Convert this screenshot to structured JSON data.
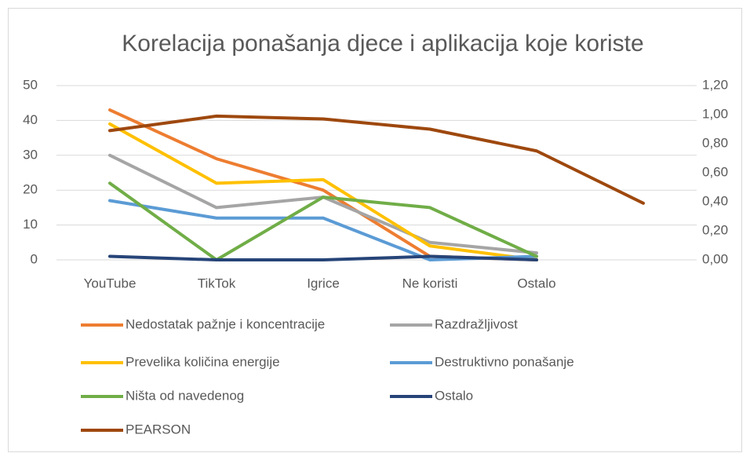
{
  "chart_data": {
    "type": "line",
    "title": "Korelacija ponašanja djece i aplikacija koje koriste",
    "categories": [
      "YouTube",
      "TikTok",
      "Igrice",
      "Ne koristi",
      "Ostalo",
      null
    ],
    "series": [
      {
        "name": "Nedostatak pažnje i koncentracije",
        "color": "#ed7d31",
        "values": [
          43,
          29,
          20,
          1,
          0,
          null
        ]
      },
      {
        "name": "Razdražljivost",
        "color": "#a5a5a5",
        "values": [
          30,
          15,
          18,
          5,
          2,
          null
        ]
      },
      {
        "name": "Prevelika količina energije",
        "color": "#ffc000",
        "values": [
          39,
          22,
          23,
          4,
          0,
          null
        ]
      },
      {
        "name": "Destruktivno ponašanje",
        "color": "#5b9bd5",
        "values": [
          17,
          12,
          12,
          0,
          1,
          null
        ]
      },
      {
        "name": "Ništa od navedenog",
        "color": "#70ad47",
        "values": [
          22,
          0,
          18,
          15,
          1,
          null
        ]
      },
      {
        "name": "Ostalo",
        "color": "#264478",
        "values": [
          1,
          0,
          0,
          1,
          0,
          null
        ]
      },
      {
        "name": "PEARSON",
        "color": "#9e480e",
        "axis": "y2",
        "values": [
          0.89,
          0.99,
          0.97,
          0.9,
          0.75,
          0.39
        ]
      }
    ],
    "ylim": [
      0,
      50
    ],
    "yticks": [
      0,
      10,
      20,
      30,
      40,
      50
    ],
    "y2lim": [
      0,
      1.2
    ],
    "y2ticks": [
      {
        "value": 0,
        "label": "0,00"
      },
      {
        "value": 0.2,
        "label": "0,20"
      },
      {
        "value": 0.4,
        "label": "0,40"
      },
      {
        "value": 0.6,
        "label": "0,60"
      },
      {
        "value": 0.8,
        "label": "0,80"
      },
      {
        "value": 1.0,
        "label": "1,00"
      },
      {
        "value": 1.2,
        "label": "1,20"
      }
    ],
    "grid": true,
    "legend": "bottom"
  }
}
